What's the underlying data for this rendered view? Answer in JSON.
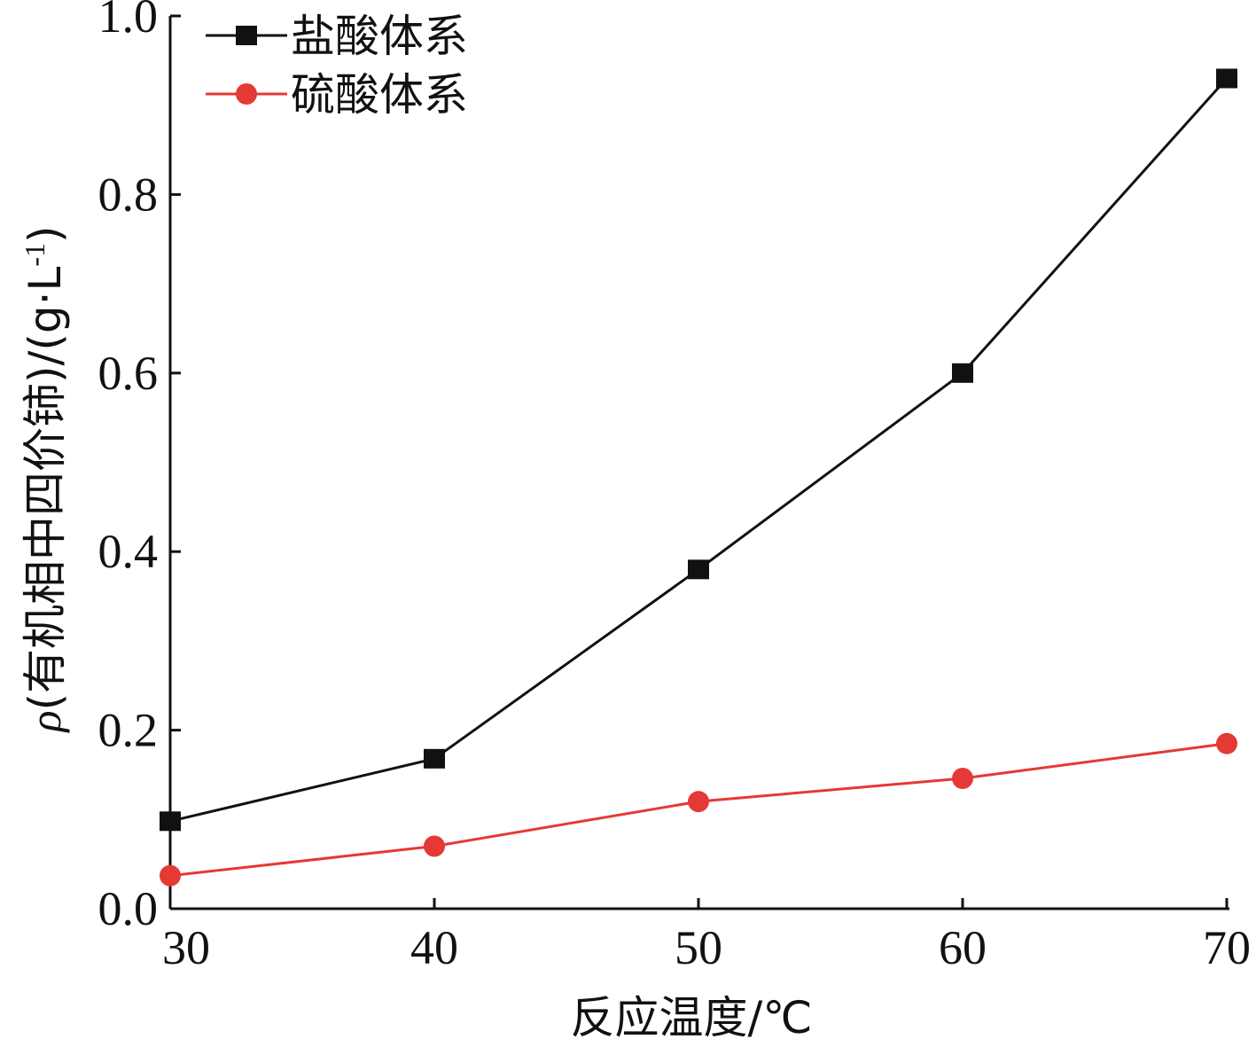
{
  "chart_data": {
    "type": "line",
    "x": [
      30,
      40,
      50,
      60,
      70
    ],
    "xlim": [
      30,
      70
    ],
    "ylim": [
      0.0,
      1.0
    ],
    "xticks": [
      "30",
      "40",
      "50",
      "60",
      "70"
    ],
    "yticks": [
      "0.0",
      "0.2",
      "0.4",
      "0.6",
      "0.8",
      "1.0"
    ],
    "xlabel": "反应温度/℃",
    "ylabel": {
      "symbol": "ρ",
      "text": "(有机相中四价铈)/(g·L",
      "superscript": "-1",
      "close": ")"
    },
    "grid": false,
    "legend_position": "top-left",
    "series": [
      {
        "name": "盐酸体系",
        "color": "#111111",
        "marker": "square",
        "values": [
          0.098,
          0.168,
          0.38,
          0.6,
          0.93
        ]
      },
      {
        "name": "硫酸体系",
        "color": "#e53935",
        "marker": "circle",
        "values": [
          0.037,
          0.07,
          0.12,
          0.146,
          0.185
        ]
      }
    ]
  }
}
